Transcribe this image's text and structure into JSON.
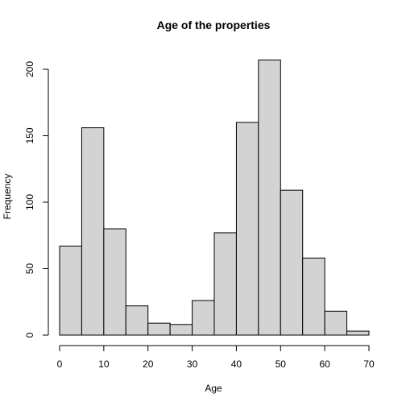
{
  "chart_data": {
    "type": "bar",
    "title": "Age of the properties",
    "xlabel": "Age",
    "ylabel": "Frequency",
    "bins": [
      {
        "start": 0,
        "end": 5,
        "count": 67
      },
      {
        "start": 5,
        "end": 10,
        "count": 156
      },
      {
        "start": 10,
        "end": 15,
        "count": 80
      },
      {
        "start": 15,
        "end": 20,
        "count": 22
      },
      {
        "start": 20,
        "end": 25,
        "count": 9
      },
      {
        "start": 25,
        "end": 30,
        "count": 8
      },
      {
        "start": 30,
        "end": 35,
        "count": 26
      },
      {
        "start": 35,
        "end": 40,
        "count": 77
      },
      {
        "start": 40,
        "end": 45,
        "count": 160
      },
      {
        "start": 45,
        "end": 50,
        "count": 207
      },
      {
        "start": 50,
        "end": 55,
        "count": 109
      },
      {
        "start": 55,
        "end": 60,
        "count": 58
      },
      {
        "start": 60,
        "end": 65,
        "count": 18
      },
      {
        "start": 65,
        "end": 70,
        "count": 3
      }
    ],
    "xlim": [
      0,
      70
    ],
    "ylim": [
      0,
      200
    ],
    "x_ticks": [
      0,
      10,
      20,
      30,
      40,
      50,
      60,
      70
    ],
    "y_ticks": [
      0,
      50,
      100,
      150,
      200
    ],
    "bar_fill": "#d3d3d3",
    "grid": false,
    "legend": "none"
  }
}
